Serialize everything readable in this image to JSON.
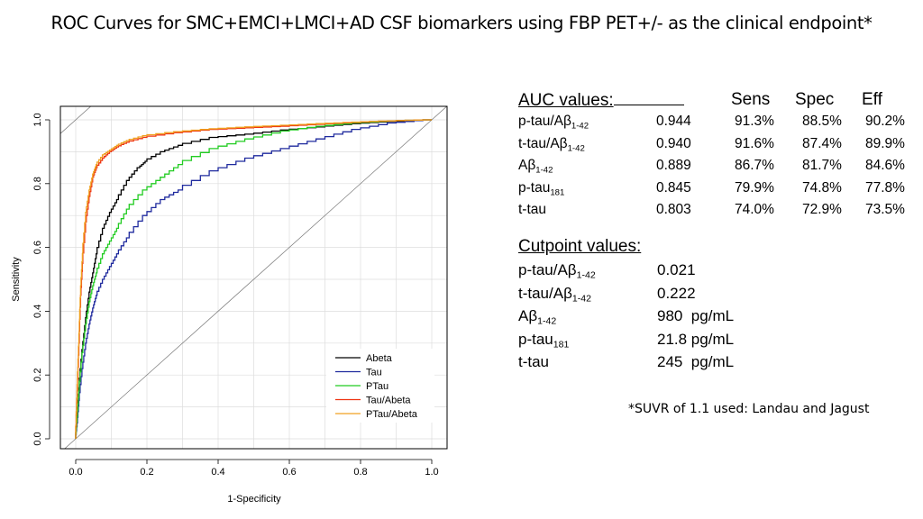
{
  "title": "ROC  Curves for SMC+EMCI+LMCI+AD CSF biomarkers using FBP PET+/- as the clinical endpoint*",
  "chart_data": {
    "type": "line",
    "xlabel": "1-Specificity",
    "ylabel": "Sensitivity",
    "xlim": [
      0,
      1
    ],
    "ylim": [
      0,
      1
    ],
    "xticks": [
      "0.0",
      "0.2",
      "0.4",
      "0.6",
      "0.8",
      "1.0"
    ],
    "yticks": [
      "0.0",
      "0.2",
      "0.4",
      "0.6",
      "0.8",
      "1.0"
    ],
    "grid": true,
    "legend_position": "bottom-right",
    "diagonal_reference": true,
    "series": [
      {
        "name": "Abeta",
        "color": "#000000",
        "x": [
          0,
          0.005,
          0.01,
          0.02,
          0.03,
          0.04,
          0.05,
          0.06,
          0.08,
          0.1,
          0.12,
          0.15,
          0.18,
          0.2,
          0.25,
          0.3,
          0.4,
          0.5,
          0.6,
          0.7,
          0.8,
          0.9,
          1.0
        ],
        "y": [
          0,
          0.08,
          0.16,
          0.28,
          0.38,
          0.46,
          0.52,
          0.58,
          0.66,
          0.71,
          0.75,
          0.81,
          0.85,
          0.87,
          0.9,
          0.92,
          0.945,
          0.955,
          0.968,
          0.978,
          0.988,
          0.995,
          1.0
        ]
      },
      {
        "name": "Tau",
        "color": "#1f2a9e",
        "x": [
          0,
          0.005,
          0.01,
          0.02,
          0.03,
          0.04,
          0.05,
          0.06,
          0.08,
          0.1,
          0.12,
          0.15,
          0.2,
          0.25,
          0.3,
          0.4,
          0.5,
          0.6,
          0.7,
          0.8,
          0.9,
          1.0
        ],
        "y": [
          0,
          0.05,
          0.12,
          0.22,
          0.3,
          0.36,
          0.41,
          0.45,
          0.5,
          0.54,
          0.58,
          0.63,
          0.7,
          0.75,
          0.78,
          0.84,
          0.88,
          0.91,
          0.94,
          0.97,
          0.99,
          1.0
        ]
      },
      {
        "name": "PTau",
        "color": "#22cc22",
        "x": [
          0,
          0.005,
          0.01,
          0.02,
          0.03,
          0.04,
          0.05,
          0.06,
          0.08,
          0.1,
          0.12,
          0.15,
          0.2,
          0.25,
          0.3,
          0.4,
          0.5,
          0.6,
          0.7,
          0.8,
          0.9,
          1.0
        ],
        "y": [
          0,
          0.07,
          0.15,
          0.27,
          0.36,
          0.43,
          0.48,
          0.52,
          0.58,
          0.62,
          0.66,
          0.72,
          0.78,
          0.82,
          0.86,
          0.91,
          0.94,
          0.965,
          0.98,
          0.99,
          0.997,
          1.0
        ]
      },
      {
        "name": "Tau/Abeta",
        "color": "#ee3311",
        "x": [
          0,
          0.005,
          0.01,
          0.015,
          0.02,
          0.03,
          0.04,
          0.05,
          0.06,
          0.08,
          0.1,
          0.12,
          0.15,
          0.2,
          0.3,
          0.4,
          0.5,
          0.6,
          0.7,
          0.8,
          0.9,
          1.0
        ],
        "y": [
          0,
          0.15,
          0.3,
          0.45,
          0.55,
          0.68,
          0.76,
          0.82,
          0.85,
          0.88,
          0.9,
          0.915,
          0.93,
          0.945,
          0.96,
          0.97,
          0.975,
          0.98,
          0.986,
          0.992,
          0.997,
          1.0
        ]
      },
      {
        "name": "PTau/Abeta",
        "color": "#f0a020",
        "x": [
          0,
          0.005,
          0.01,
          0.015,
          0.02,
          0.03,
          0.04,
          0.05,
          0.06,
          0.08,
          0.1,
          0.12,
          0.15,
          0.2,
          0.3,
          0.4,
          0.5,
          0.6,
          0.7,
          0.8,
          0.9,
          1.0
        ],
        "y": [
          0,
          0.17,
          0.33,
          0.48,
          0.58,
          0.71,
          0.78,
          0.83,
          0.86,
          0.89,
          0.905,
          0.92,
          0.935,
          0.95,
          0.963,
          0.972,
          0.978,
          0.983,
          0.988,
          0.993,
          0.997,
          1.0
        ]
      }
    ]
  },
  "auc_table": {
    "header": "AUC values:",
    "columns": [
      "Sens",
      "Spec",
      "Eff"
    ],
    "rows": [
      {
        "label": "p-tau/Aβ",
        "sub": "1-42",
        "auc": "0.944",
        "sens": "91.3%",
        "spec": "88.5%",
        "eff": "90.2%"
      },
      {
        "label": "t-tau/Aβ",
        "sub": "1-42",
        "auc": "0.940",
        "sens": "91.6%",
        "spec": "87.4%",
        "eff": "89.9%"
      },
      {
        "label": "Aβ",
        "sub": "1-42",
        "auc": "0.889",
        "sens": "86.7%",
        "spec": "81.7%",
        "eff": "84.6%"
      },
      {
        "label": "p-tau",
        "sub": "181",
        "auc": "0.845",
        "sens": "79.9%",
        "spec": "74.8%",
        "eff": "77.8%"
      },
      {
        "label": "t-tau",
        "sub": "",
        "auc": "0.803",
        "sens": "74.0%",
        "spec": "72.9%",
        "eff": "73.5%"
      }
    ]
  },
  "cutpoints": {
    "header": "Cutpoint values:",
    "rows": [
      {
        "label": "p-tau/Aβ",
        "sub": "1-42",
        "value": "0.021"
      },
      {
        "label": "t-tau/Aβ",
        "sub": "1-42",
        "value": "0.222"
      },
      {
        "label": "Aβ",
        "sub": "1-42",
        "value": "980  pg/mL"
      },
      {
        "label": "p-tau",
        "sub": "181",
        "value": "21.8 pg/mL"
      },
      {
        "label": "t-tau",
        "sub": "",
        "value": "245  pg/mL"
      }
    ]
  },
  "footnote": "*SUVR of 1.1 used: Landau and Jagust"
}
